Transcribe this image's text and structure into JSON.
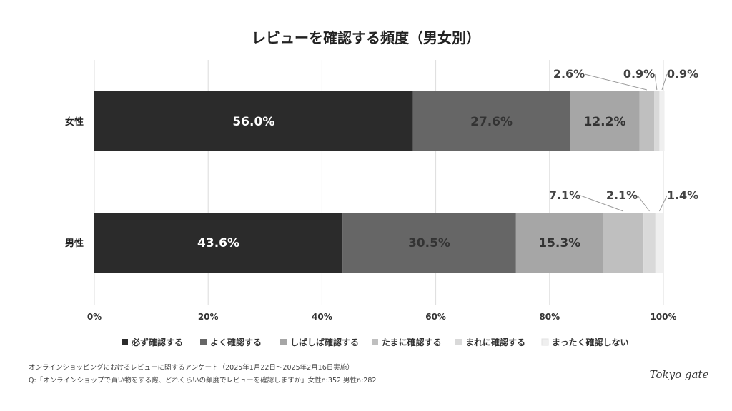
{
  "chart_data": {
    "type": "bar",
    "orientation": "horizontal",
    "stacked": true,
    "title": "レビューを確認する頻度（男女別）",
    "categories": [
      "女性",
      "男性"
    ],
    "series": [
      {
        "name": "必ず確認する",
        "values": [
          56.0,
          43.6
        ],
        "labels": [
          "56.0%",
          "43.6%"
        ],
        "color": "#2b2b2b",
        "text_color": "#ffffff"
      },
      {
        "name": "よく確認する",
        "values": [
          27.6,
          30.5
        ],
        "labels": [
          "27.6%",
          "30.5%"
        ],
        "color": "#666666",
        "text_color": "#333333"
      },
      {
        "name": "しばしば確認する",
        "values": [
          12.2,
          15.3
        ],
        "labels": [
          "12.2%",
          "15.3%"
        ],
        "color": "#a6a6a6",
        "text_color": "#333333"
      },
      {
        "name": "たまに確認する",
        "values": [
          2.6,
          7.1
        ],
        "labels": [
          "2.6%",
          "7.1%"
        ],
        "color": "#bfbfbf",
        "text_color": "#444444"
      },
      {
        "name": "まれに確認する",
        "values": [
          0.9,
          2.1
        ],
        "labels": [
          "0.9%",
          "2.1%"
        ],
        "color": "#d9d9d9",
        "text_color": "#444444"
      },
      {
        "name": "まったく確認しない",
        "values": [
          0.9,
          1.4
        ],
        "labels": [
          "0.9%",
          "1.4%"
        ],
        "color": "#efefef",
        "text_color": "#444444"
      }
    ],
    "xlim": [
      0,
      100
    ],
    "x_ticks": [
      "0%",
      "20%",
      "40%",
      "60%",
      "80%",
      "100%"
    ],
    "grid": true,
    "legend_position": "bottom"
  },
  "footnotes": {
    "line1": "オンラインショッピングにおけるレビューに関するアンケート（2025年1月22日〜2025年2月16日実施）",
    "line2": "Q:「オンラインショップで買い物をする際、どれくらいの頻度でレビューを確認しますか」女性n:352 男性n:282"
  },
  "logo": {
    "text": "Tokyo gate"
  }
}
